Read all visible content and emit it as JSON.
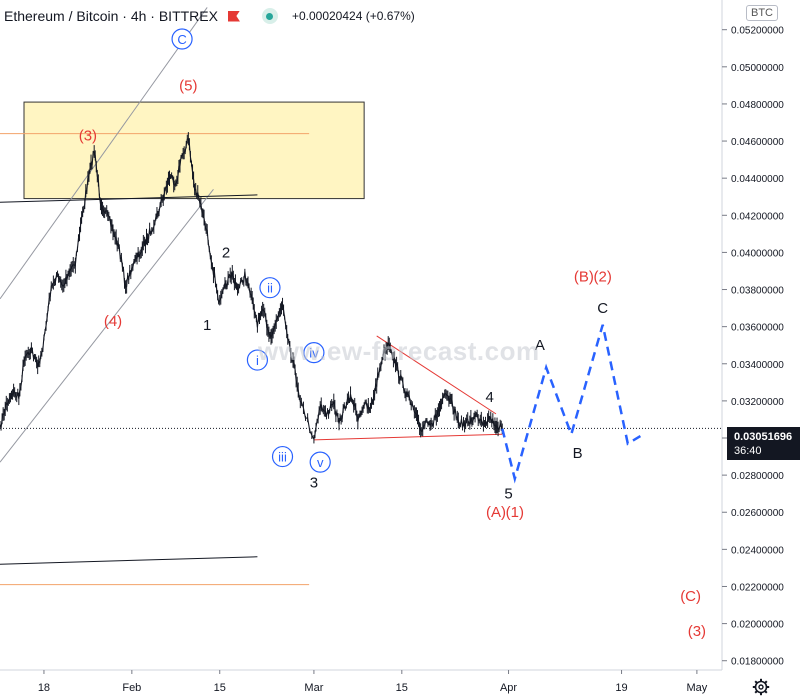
{
  "header": {
    "title": "Ethereum / Bitcoin · 4h · BITTREX",
    "change": "+0.00020424 (+0.67%)"
  },
  "currency_badge": "BTC",
  "price_label": {
    "price": "0.03051696",
    "timer": "36:40"
  },
  "watermark": "www.ew-forecast.com",
  "icons": {
    "flag": "flag-icon",
    "eye": "eye-icon",
    "settings": "gear-icon"
  },
  "colors": {
    "bullish_labels": "#e53935",
    "impulse_labels": "#131722",
    "minor_labels": "#2962ff",
    "projection": "#2962ff",
    "zone_fill": "#fff5c2",
    "zone_border": "#333333",
    "fib_lines": "#f3a36a"
  },
  "chart_data": {
    "type": "line",
    "title": "Ethereum / Bitcoin · 4h · BITTREX",
    "x_ticks": [
      "18",
      "Feb",
      "15",
      "Mar",
      "15",
      "Apr",
      "19",
      "May"
    ],
    "y_ticks": [
      "0.05200000",
      "0.05000000",
      "0.04800000",
      "0.04600000",
      "0.04400000",
      "0.04200000",
      "0.04000000",
      "0.03800000",
      "0.03600000",
      "0.03400000",
      "0.03200000",
      "0.03000000",
      "0.02800000",
      "0.02600000",
      "0.02400000",
      "0.02200000",
      "0.02000000",
      "0.01800000"
    ],
    "ylim": [
      0.0175,
      0.0536
    ],
    "x_axis": {
      "start_date": "2020-01-11",
      "end_date": "2020-05-05"
    },
    "last_price": 0.03051696,
    "price_path": [
      {
        "d": "2020-01-11",
        "v": 0.0305
      },
      {
        "d": "2020-01-12",
        "v": 0.0318
      },
      {
        "d": "2020-01-13",
        "v": 0.0325
      },
      {
        "d": "2020-01-14",
        "v": 0.0322
      },
      {
        "d": "2020-01-15",
        "v": 0.0345
      },
      {
        "d": "2020-01-16",
        "v": 0.0348
      },
      {
        "d": "2020-01-17",
        "v": 0.0338
      },
      {
        "d": "2020-01-18",
        "v": 0.0352
      },
      {
        "d": "2020-01-19",
        "v": 0.0378
      },
      {
        "d": "2020-01-20",
        "v": 0.0388
      },
      {
        "d": "2020-01-21",
        "v": 0.0381
      },
      {
        "d": "2020-01-22",
        "v": 0.039
      },
      {
        "d": "2020-01-23",
        "v": 0.0395
      },
      {
        "d": "2020-01-24",
        "v": 0.0418
      },
      {
        "d": "2020-01-25",
        "v": 0.0438
      },
      {
        "d": "2020-01-26",
        "v": 0.0455
      },
      {
        "d": "2020-01-27",
        "v": 0.0428
      },
      {
        "d": "2020-01-28",
        "v": 0.042
      },
      {
        "d": "2020-01-29",
        "v": 0.0412
      },
      {
        "d": "2020-01-30",
        "v": 0.0402
      },
      {
        "d": "2020-01-31",
        "v": 0.0382
      },
      {
        "d": "2020-02-01",
        "v": 0.0392
      },
      {
        "d": "2020-02-02",
        "v": 0.0398
      },
      {
        "d": "2020-02-03",
        "v": 0.0404
      },
      {
        "d": "2020-02-04",
        "v": 0.0412
      },
      {
        "d": "2020-02-05",
        "v": 0.042
      },
      {
        "d": "2020-02-06",
        "v": 0.043
      },
      {
        "d": "2020-02-07",
        "v": 0.0441
      },
      {
        "d": "2020-02-08",
        "v": 0.0438
      },
      {
        "d": "2020-02-09",
        "v": 0.0452
      },
      {
        "d": "2020-02-10",
        "v": 0.0461
      },
      {
        "d": "2020-02-11",
        "v": 0.0435
      },
      {
        "d": "2020-02-12",
        "v": 0.0425
      },
      {
        "d": "2020-02-13",
        "v": 0.041
      },
      {
        "d": "2020-02-14",
        "v": 0.039
      },
      {
        "d": "2020-02-15",
        "v": 0.0372
      },
      {
        "d": "2020-02-16",
        "v": 0.0383
      },
      {
        "d": "2020-02-17",
        "v": 0.0388
      },
      {
        "d": "2020-02-18",
        "v": 0.038
      },
      {
        "d": "2020-02-19",
        "v": 0.0388
      },
      {
        "d": "2020-02-20",
        "v": 0.0376
      },
      {
        "d": "2020-02-21",
        "v": 0.0362
      },
      {
        "d": "2020-02-22",
        "v": 0.0368
      },
      {
        "d": "2020-02-23",
        "v": 0.0355
      },
      {
        "d": "2020-02-24",
        "v": 0.0362
      },
      {
        "d": "2020-02-25",
        "v": 0.0373
      },
      {
        "d": "2020-02-26",
        "v": 0.0352
      },
      {
        "d": "2020-02-27",
        "v": 0.0336
      },
      {
        "d": "2020-02-28",
        "v": 0.0318
      },
      {
        "d": "2020-03-01",
        "v": 0.03
      },
      {
        "d": "2020-03-02",
        "v": 0.0318
      },
      {
        "d": "2020-03-03",
        "v": 0.0312
      },
      {
        "d": "2020-03-04",
        "v": 0.032
      },
      {
        "d": "2020-03-05",
        "v": 0.0307
      },
      {
        "d": "2020-03-06",
        "v": 0.0318
      },
      {
        "d": "2020-03-07",
        "v": 0.0322
      },
      {
        "d": "2020-03-08",
        "v": 0.0311
      },
      {
        "d": "2020-03-09",
        "v": 0.0318
      },
      {
        "d": "2020-03-10",
        "v": 0.0315
      },
      {
        "d": "2020-03-11",
        "v": 0.033
      },
      {
        "d": "2020-03-12",
        "v": 0.0345
      },
      {
        "d": "2020-03-13",
        "v": 0.0352
      },
      {
        "d": "2020-03-14",
        "v": 0.034
      },
      {
        "d": "2020-03-15",
        "v": 0.033
      },
      {
        "d": "2020-03-16",
        "v": 0.0322
      },
      {
        "d": "2020-03-17",
        "v": 0.0314
      },
      {
        "d": "2020-03-18",
        "v": 0.0304
      },
      {
        "d": "2020-03-19",
        "v": 0.031
      },
      {
        "d": "2020-03-20",
        "v": 0.0308
      },
      {
        "d": "2020-03-21",
        "v": 0.0316
      },
      {
        "d": "2020-03-22",
        "v": 0.0323
      },
      {
        "d": "2020-03-23",
        "v": 0.0318
      },
      {
        "d": "2020-03-24",
        "v": 0.0309
      },
      {
        "d": "2020-03-25",
        "v": 0.0307
      },
      {
        "d": "2020-03-26",
        "v": 0.031
      },
      {
        "d": "2020-03-27",
        "v": 0.0312
      },
      {
        "d": "2020-03-28",
        "v": 0.0309
      },
      {
        "d": "2020-03-29",
        "v": 0.0311
      },
      {
        "d": "2020-03-30",
        "v": 0.0307
      },
      {
        "d": "2020-03-31",
        "v": 0.0305
      }
    ],
    "projection_path": [
      {
        "d": "2020-03-31",
        "v": 0.0305
      },
      {
        "d": "2020-04-02",
        "v": 0.0278
      },
      {
        "d": "2020-04-07",
        "v": 0.0338
      },
      {
        "d": "2020-04-11",
        "v": 0.0302
      },
      {
        "d": "2020-04-16",
        "v": 0.0361
      },
      {
        "d": "2020-04-20",
        "v": 0.0297
      },
      {
        "d": "2020-04-22",
        "v": 0.0301
      }
    ],
    "zone": {
      "start": "2020-01-11",
      "end": "2020-03-09",
      "top": 0.0481,
      "bottom": 0.0429
    },
    "horizontal_lines": [
      {
        "start": "2020-01-11",
        "end": "2020-03-09",
        "v": 0.0464,
        "style": "fib"
      },
      {
        "start": "2020-01-11",
        "end": "2020-03-09",
        "v": 0.0221,
        "style": "fib"
      }
    ],
    "trend_lines": [
      {
        "x1": "2020-01-11",
        "y1": 0.0375,
        "x2": "2020-02-13",
        "y2": 0.0532,
        "style": "channel"
      },
      {
        "x1": "2020-01-11",
        "y1": 0.0287,
        "x2": "2020-02-14",
        "y2": 0.0434,
        "style": "channel"
      },
      {
        "x1": "2020-01-11",
        "y1": 0.0427,
        "x2": "2020-02-21",
        "y2": 0.0431,
        "style": "black"
      },
      {
        "x1": "2020-01-11",
        "y1": 0.0232,
        "x2": "2020-02-21",
        "y2": 0.0236,
        "style": "black"
      },
      {
        "x1": "2020-03-11",
        "y1": 0.0355,
        "x2": "2020-03-30",
        "y2": 0.0313,
        "style": "red"
      },
      {
        "x1": "2020-03-01",
        "y1": 0.0299,
        "x2": "2020-03-31",
        "y2": 0.0302,
        "style": "red"
      }
    ],
    "wave_labels": [
      {
        "text": "(3)",
        "d": "2020-01-25",
        "v": 0.0463,
        "color": "bullish",
        "circle": false
      },
      {
        "text": "(5)",
        "d": "2020-02-10",
        "v": 0.049,
        "color": "bullish",
        "circle": false
      },
      {
        "text": "C",
        "d": "2020-02-09",
        "v": 0.0515,
        "color": "minor",
        "circle": true
      },
      {
        "text": "(4)",
        "d": "2020-01-29",
        "v": 0.0363,
        "color": "bullish",
        "circle": false
      },
      {
        "text": "1",
        "d": "2020-02-13",
        "v": 0.0361,
        "color": "impulse",
        "circle": false
      },
      {
        "text": "2",
        "d": "2020-02-16",
        "v": 0.04,
        "color": "impulse",
        "circle": false
      },
      {
        "text": "ii",
        "d": "2020-02-23",
        "v": 0.0381,
        "color": "minor",
        "circle": true
      },
      {
        "text": "i",
        "d": "2020-02-21",
        "v": 0.0342,
        "color": "minor",
        "circle": true
      },
      {
        "text": "iv",
        "d": "2020-03-01",
        "v": 0.0346,
        "color": "minor",
        "circle": true
      },
      {
        "text": "iii",
        "d": "2020-02-25",
        "v": 0.029,
        "color": "minor",
        "circle": true
      },
      {
        "text": "v",
        "d": "2020-03-02",
        "v": 0.0287,
        "color": "minor",
        "circle": true
      },
      {
        "text": "3",
        "d": "2020-03-01",
        "v": 0.0276,
        "color": "impulse",
        "circle": false
      },
      {
        "text": "4",
        "d": "2020-03-29",
        "v": 0.0322,
        "color": "impulse",
        "circle": false
      },
      {
        "text": "5",
        "d": "2020-04-01",
        "v": 0.027,
        "color": "impulse",
        "circle": false
      },
      {
        "text": "(A)",
        "d": "2020-03-30",
        "v": 0.026,
        "color": "bullish",
        "circle": false
      },
      {
        "text": "(1)",
        "d": "2020-04-02",
        "v": 0.026,
        "color": "bullish",
        "circle": false
      },
      {
        "text": "A",
        "d": "2020-04-06",
        "v": 0.035,
        "color": "impulse",
        "circle": false
      },
      {
        "text": "B",
        "d": "2020-04-12",
        "v": 0.0292,
        "color": "impulse",
        "circle": false
      },
      {
        "text": "C",
        "d": "2020-04-16",
        "v": 0.037,
        "color": "impulse",
        "circle": false
      },
      {
        "text": "(B)",
        "d": "2020-04-13",
        "v": 0.0387,
        "color": "bullish",
        "circle": false
      },
      {
        "text": "(2)",
        "d": "2020-04-16",
        "v": 0.0387,
        "color": "bullish",
        "circle": false
      },
      {
        "text": "(C)",
        "d": "2020-04-30",
        "v": 0.0215,
        "color": "bullish",
        "circle": false
      },
      {
        "text": "(3)",
        "d": "2020-05-01",
        "v": 0.0196,
        "color": "bullish",
        "circle": false
      }
    ]
  }
}
